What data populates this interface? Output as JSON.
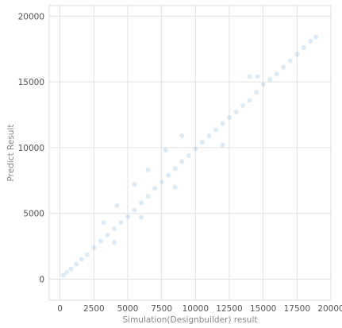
{
  "chart_data": {
    "type": "scatter",
    "xlabel": "Simulation(Designbuilder) result",
    "ylabel": "Predict Result",
    "xlim": [
      -800,
      20000
    ],
    "ylim": [
      -1600,
      20800
    ],
    "xticks": [
      0,
      2500,
      5000,
      7500,
      10000,
      12500,
      15000,
      17500,
      20000
    ],
    "yticks": [
      0,
      5000,
      10000,
      15000,
      20000
    ],
    "grid": true,
    "legend": "none",
    "point_color": "#1f77b4",
    "point_opacity": 0.15,
    "series": [
      {
        "points": [
          [
            250,
            300
          ],
          [
            500,
            520
          ],
          [
            800,
            780
          ],
          [
            1200,
            1150
          ],
          [
            1600,
            1500
          ],
          [
            2000,
            1850
          ],
          [
            2500,
            2400
          ],
          [
            3000,
            2900
          ],
          [
            3500,
            3350
          ],
          [
            4000,
            3850
          ],
          [
            4500,
            4300
          ],
          [
            5000,
            4750
          ],
          [
            5500,
            5250
          ],
          [
            6000,
            5800
          ],
          [
            6500,
            6300
          ],
          [
            7000,
            6900
          ],
          [
            7500,
            7400
          ],
          [
            8000,
            7900
          ],
          [
            8500,
            8400
          ],
          [
            9000,
            8950
          ],
          [
            9500,
            9400
          ],
          [
            10000,
            9900
          ],
          [
            10500,
            10400
          ],
          [
            11000,
            10900
          ],
          [
            11500,
            11350
          ],
          [
            12000,
            11850
          ],
          [
            12500,
            12300
          ],
          [
            13000,
            12700
          ],
          [
            13500,
            13200
          ],
          [
            14000,
            13600
          ],
          [
            14500,
            14200
          ],
          [
            15000,
            14800
          ],
          [
            15500,
            15200
          ],
          [
            16000,
            15600
          ],
          [
            16500,
            16100
          ],
          [
            17000,
            16600
          ],
          [
            17500,
            17100
          ],
          [
            18000,
            17600
          ],
          [
            18500,
            18100
          ],
          [
            18900,
            18400
          ],
          [
            3200,
            4300
          ],
          [
            4200,
            5600
          ],
          [
            5500,
            7200
          ],
          [
            6500,
            8300
          ],
          [
            7800,
            9800
          ],
          [
            9000,
            10900
          ],
          [
            14000,
            15400
          ],
          [
            14600,
            15400
          ],
          [
            4000,
            2800
          ],
          [
            6000,
            4700
          ],
          [
            8500,
            7000
          ],
          [
            12000,
            10200
          ]
        ]
      }
    ]
  }
}
